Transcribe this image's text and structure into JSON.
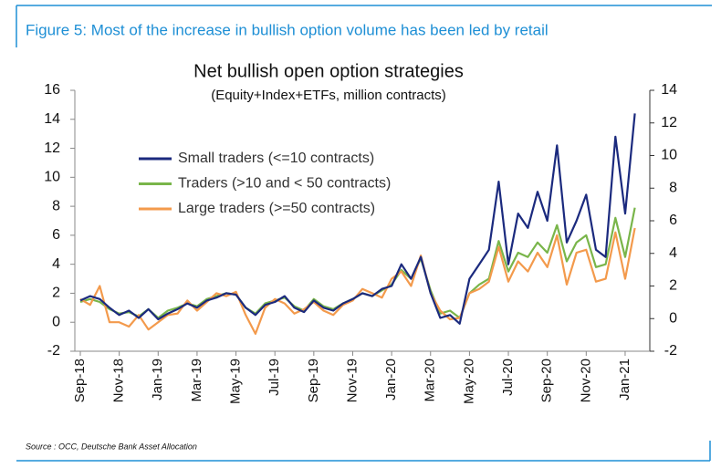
{
  "figure_title": "Figure 5: Most of the increase in bullish option volume has been led by retail",
  "source": "Source : OCC, Deutsche Bank Asset Allocation",
  "chart_data": {
    "type": "line",
    "title": "Net bullish open option strategies",
    "subtitle": "(Equity+Index+ETFs, million contracts)",
    "categories": [
      "Sep-18",
      null,
      null,
      null,
      "Nov-18",
      null,
      null,
      null,
      "Jan-19",
      null,
      null,
      null,
      "Mar-19",
      null,
      null,
      null,
      "May-19",
      null,
      null,
      null,
      "Jul-19",
      null,
      null,
      null,
      "Sep-19",
      null,
      null,
      null,
      "Nov-19",
      null,
      null,
      null,
      "Jan-20",
      null,
      null,
      null,
      "Mar-20",
      null,
      null,
      null,
      "May-20",
      null,
      null,
      null,
      "Jul-20",
      null,
      null,
      null,
      "Sep-20",
      null,
      null,
      null,
      "Nov-20",
      null,
      null,
      null,
      "Jan-21",
      null
    ],
    "series": [
      {
        "name": "Small traders (<=10 contracts)",
        "color": "#1b2a7e",
        "values": [
          1.5,
          1.8,
          1.6,
          1.0,
          0.5,
          0.8,
          0.3,
          0.9,
          0.2,
          0.6,
          0.9,
          1.3,
          1.0,
          1.5,
          1.7,
          2.0,
          1.9,
          1.0,
          0.5,
          1.2,
          1.4,
          1.8,
          1.0,
          0.7,
          1.5,
          1.0,
          0.8,
          1.3,
          1.6,
          2.0,
          1.8,
          2.3,
          2.5,
          4.0,
          3.0,
          4.5,
          2.0,
          0.3,
          0.5,
          -0.1,
          3.0,
          4.0,
          5.0,
          9.7,
          4.0,
          7.5,
          6.5,
          9.0,
          7.0,
          12.2,
          5.5,
          7.0,
          8.8,
          5.0,
          4.5,
          12.8,
          7.5,
          14.4
        ]
      },
      {
        "name": "Traders (>10 and < 50 contracts)",
        "color": "#79b54a",
        "values": [
          1.4,
          1.6,
          1.4,
          0.9,
          0.6,
          0.7,
          0.4,
          0.9,
          0.3,
          0.8,
          1.0,
          1.3,
          1.1,
          1.6,
          1.8,
          2.0,
          1.9,
          1.0,
          0.6,
          1.3,
          1.5,
          1.7,
          1.1,
          0.8,
          1.6,
          1.1,
          0.9,
          1.3,
          1.6,
          2.0,
          1.8,
          2.2,
          2.6,
          3.6,
          3.0,
          4.4,
          2.2,
          0.6,
          0.8,
          0.3,
          2.0,
          2.6,
          3.0,
          5.6,
          3.5,
          4.8,
          4.5,
          5.5,
          4.8,
          6.7,
          4.2,
          5.5,
          6.0,
          3.8,
          4.0,
          7.2,
          4.5,
          7.9
        ]
      },
      {
        "name": "Large traders (>=50 contracts)",
        "color": "#f39a4c",
        "values": [
          1.6,
          1.2,
          2.5,
          0.0,
          0.0,
          -0.3,
          0.5,
          -0.5,
          0.0,
          0.5,
          0.6,
          1.5,
          0.8,
          1.4,
          2.0,
          1.8,
          2.1,
          0.5,
          -0.8,
          1.0,
          1.6,
          1.3,
          0.6,
          0.9,
          1.4,
          0.8,
          0.5,
          1.2,
          1.5,
          2.3,
          2.0,
          1.7,
          3.0,
          3.5,
          2.5,
          4.6,
          2.0,
          0.8,
          0.2,
          0.3,
          2.0,
          2.3,
          2.8,
          5.2,
          2.8,
          4.2,
          3.5,
          4.8,
          3.8,
          6.0,
          2.6,
          4.8,
          5.0,
          2.8,
          3.0,
          6.2,
          3.0,
          6.5
        ]
      }
    ],
    "ylim": [
      -2,
      16
    ],
    "yticks": [
      -2,
      0,
      2,
      4,
      6,
      8,
      10,
      12,
      14,
      16
    ],
    "y2lim": [
      -2,
      14
    ],
    "y2ticks": [
      -2,
      0,
      2,
      4,
      6,
      8,
      10,
      12,
      14
    ]
  }
}
